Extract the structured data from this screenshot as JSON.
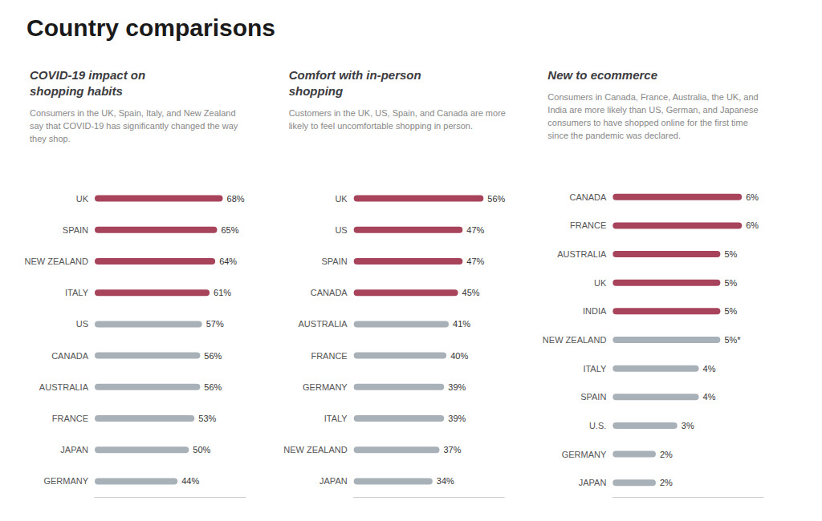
{
  "title": "Country comparisons",
  "chart_data": [
    {
      "type": "bar",
      "orientation": "horizontal",
      "title": "COVID-19 impact on\nshopping habits",
      "subtitle": "Consumers in the UK, Spain, Italy, and New Zealand\nsay that COVID-19 has significantly changed the way\nthey shop.",
      "categories": [
        "UK",
        "SPAIN",
        "NEW ZEALAND",
        "ITALY",
        "US",
        "CANADA",
        "AUSTRALIA",
        "FRANCE",
        "JAPAN",
        "GERMANY"
      ],
      "values": [
        68,
        65,
        64,
        61,
        57,
        56,
        56,
        53,
        50,
        44
      ],
      "value_labels": [
        "68%",
        "65%",
        "64%",
        "61%",
        "57%",
        "56%",
        "56%",
        "53%",
        "50%",
        "44%"
      ],
      "colors": [
        "#a7435a",
        "#a7435a",
        "#a7435a",
        "#a7435a",
        "#a9b1b8",
        "#a9b1b8",
        "#a9b1b8",
        "#a9b1b8",
        "#a9b1b8",
        "#a9b1b8"
      ],
      "xlim": [
        0,
        80
      ],
      "data_labels": true,
      "tick_labels": "y",
      "grid": false
    },
    {
      "type": "bar",
      "orientation": "horizontal",
      "title": "Comfort with in-person\nshopping",
      "subtitle": "Customers in the UK, US, Spain, and Canada are more\nlikely to feel uncomfortable shopping in person.",
      "categories": [
        "UK",
        "US",
        "SPAIN",
        "CANADA",
        "AUSTRALIA",
        "FRANCE",
        "GERMANY",
        "ITALY",
        "NEW ZEALAND",
        "JAPAN"
      ],
      "values": [
        56,
        47,
        47,
        45,
        41,
        40,
        39,
        39,
        37,
        34
      ],
      "value_labels": [
        "56%",
        "47%",
        "47%",
        "45%",
        "41%",
        "40%",
        "39%",
        "39%",
        "37%",
        "34%"
      ],
      "colors": [
        "#a7435a",
        "#a7435a",
        "#a7435a",
        "#a7435a",
        "#a9b1b8",
        "#a9b1b8",
        "#a9b1b8",
        "#a9b1b8",
        "#a9b1b8",
        "#a9b1b8"
      ],
      "xlim": [
        0,
        65
      ],
      "data_labels": true,
      "tick_labels": "y",
      "grid": false
    },
    {
      "type": "bar",
      "orientation": "horizontal",
      "title": "New to ecommerce",
      "subtitle": "Consumers in Canada, France, Australia, the UK, and\nIndia are more likely than US, German, and Japanese\nconsumers to have shopped online for the first time\nsince the pandemic was declared.",
      "categories": [
        "CANADA",
        "FRANCE",
        "AUSTRALIA",
        "UK",
        "INDIA",
        "NEW ZEALAND",
        "ITALY",
        "SPAIN",
        "U.S.",
        "GERMANY",
        "JAPAN"
      ],
      "values": [
        6,
        6,
        5,
        5,
        5,
        5,
        4,
        4,
        3,
        2,
        2
      ],
      "value_labels": [
        "6%",
        "6%",
        "5%",
        "5%",
        "5%",
        "5%*",
        "4%",
        "4%",
        "3%",
        "2%",
        "2%"
      ],
      "colors": [
        "#a7435a",
        "#a7435a",
        "#a7435a",
        "#a7435a",
        "#a7435a",
        "#a9b1b8",
        "#a9b1b8",
        "#a9b1b8",
        "#a9b1b8",
        "#a9b1b8",
        "#a9b1b8"
      ],
      "xlim": [
        0,
        7
      ],
      "data_labels": true,
      "tick_labels": "y",
      "grid": false
    }
  ]
}
